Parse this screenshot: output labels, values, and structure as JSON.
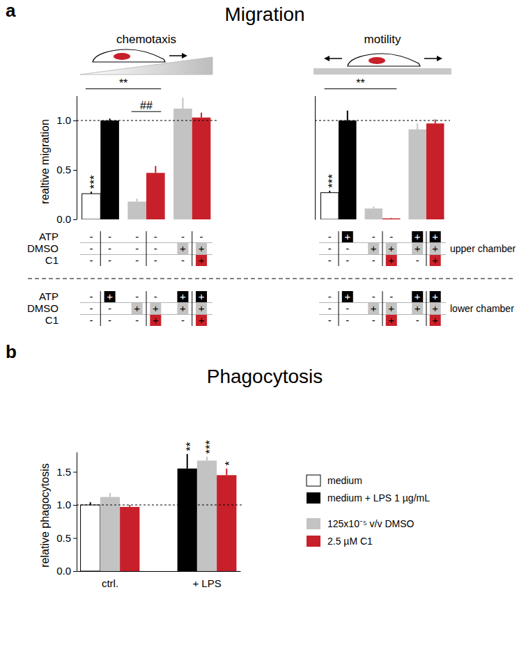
{
  "panels": [
    {
      "label": "a",
      "title": "Migration"
    },
    {
      "label": "b",
      "title": "Phagocytosis"
    }
  ],
  "conditions": {
    "row_labels": [
      "ATP",
      "DMSO",
      "C1"
    ],
    "chamber_labels": [
      "upper chamber",
      "lower chamber"
    ]
  },
  "chart_data": [
    {
      "type": "bar",
      "title": "chemotaxis",
      "y_label": "realtive migration",
      "categories": [
        null,
        null,
        null,
        null,
        null,
        null
      ],
      "values": [
        0.26,
        1.0,
        0.18,
        0.47,
        1.12,
        1.03
      ],
      "errors": [
        0.02,
        0.02,
        0.03,
        0.07,
        0.11,
        0.05
      ],
      "colors": [
        "#ffffff",
        "#000000",
        "#c3c3c3",
        "#c8202a",
        "#c3c3c3",
        "#c8202a"
      ],
      "ylim": [
        0,
        1.25
      ],
      "yticks": [
        {
          "value": 0,
          "label": "0.0"
        },
        {
          "value": 0.5,
          "label": "0.5"
        },
        {
          "value": 1,
          "label": "1.0"
        }
      ],
      "tick_labels": "y",
      "reference_line": 1,
      "annotations": [
        {
          "text": "**",
          "from": 0,
          "to": 3,
          "y": 1.32
        },
        {
          "text": "##",
          "from": 2,
          "to": 3,
          "y": 1.09
        },
        {
          "text": "***",
          "at": 0
        }
      ],
      "conditions": {
        "upper": [
          [
            "-",
            "-",
            "-",
            "-",
            "-",
            "-"
          ],
          [
            "-",
            "-",
            "-",
            "-",
            "+",
            "+"
          ],
          [
            "-",
            "-",
            "-",
            "-",
            "-",
            "+"
          ]
        ],
        "lower": [
          [
            "-",
            "+",
            "-",
            "-",
            "+",
            "+"
          ],
          [
            "-",
            "-",
            "+",
            "+",
            "+",
            "+"
          ],
          [
            "-",
            "-",
            "-",
            "+",
            "-",
            "+"
          ]
        ]
      }
    },
    {
      "type": "bar",
      "title": "motility",
      "categories": [
        null,
        null,
        null,
        null,
        null,
        null
      ],
      "values": [
        0.27,
        1.0,
        0.11,
        0.01,
        0.91,
        0.97
      ],
      "errors": [
        0.02,
        0.1,
        0.02,
        0.005,
        0.06,
        0.04
      ],
      "colors": [
        "#ffffff",
        "#000000",
        "#c3c3c3",
        "#c8202a",
        "#c3c3c3",
        "#c8202a"
      ],
      "ylim": [
        0,
        1.25
      ],
      "tick_labels": false,
      "reference_line": 1,
      "annotations": [
        {
          "text": "**",
          "from": 0,
          "to": 3,
          "y": 1.32
        },
        {
          "text": "***",
          "at": 0
        }
      ],
      "conditions": {
        "upper": [
          [
            "-",
            "+",
            "-",
            "-",
            "+",
            "+"
          ],
          [
            "-",
            "-",
            "+",
            "+",
            "+",
            "+"
          ],
          [
            "-",
            "-",
            "-",
            "+",
            "-",
            "+"
          ]
        ],
        "lower": [
          [
            "-",
            "+",
            "-",
            "-",
            "+",
            "+"
          ],
          [
            "-",
            "-",
            "+",
            "+",
            "+",
            "+"
          ],
          [
            "-",
            "-",
            "-",
            "+",
            "-",
            "+"
          ]
        ]
      }
    },
    {
      "type": "bar",
      "y_label": "relative phagocytosis",
      "categories": [
        "ctrl.",
        "+ LPS"
      ],
      "series": [
        {
          "name": "medium",
          "color": "#ffffff",
          "values": [
            1.0,
            null
          ],
          "errors": [
            0.04,
            null
          ]
        },
        {
          "name": "medium + LPS 1 µg/mL",
          "color": "#000000",
          "values": [
            null,
            1.55
          ],
          "errors": [
            null,
            0.22
          ]
        },
        {
          "name": "125x10⁻⁵ v/v DMSO",
          "color": "#c3c3c3",
          "values": [
            1.12,
            1.67
          ],
          "errors": [
            0.06,
            0.06
          ]
        },
        {
          "name": "2.5 µM C1",
          "color": "#c8202a",
          "values": [
            0.97,
            1.45
          ],
          "errors": [
            0.03,
            0.1
          ]
        }
      ],
      "ylim": [
        0,
        1.8
      ],
      "yticks": [
        {
          "value": 0,
          "label": "0.0"
        },
        {
          "value": 0.5,
          "label": "0.5"
        },
        {
          "value": 1,
          "label": "1.0"
        },
        {
          "value": 1.5,
          "label": "1.5"
        }
      ],
      "reference_line": 1,
      "legend": "right",
      "annotations": [
        {
          "text": "**",
          "series": 1,
          "category": 1
        },
        {
          "text": "***",
          "series": 2,
          "category": 1
        },
        {
          "text": "*",
          "series": 3,
          "category": 1
        }
      ]
    }
  ]
}
